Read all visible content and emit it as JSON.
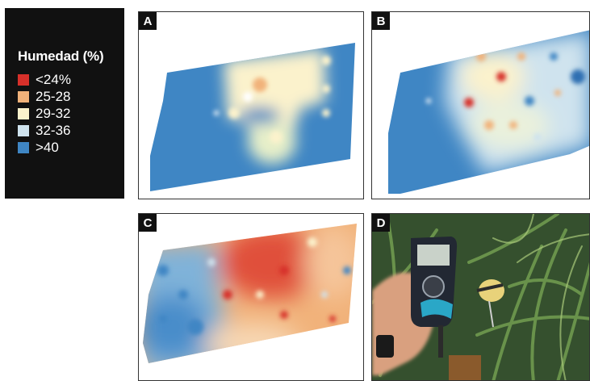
{
  "legend": {
    "title": "Humedad (%)",
    "items": [
      {
        "label": "<24%",
        "color": "#d7302a"
      },
      {
        "label": "25-28",
        "color": "#f1b27a"
      },
      {
        "label": "29-32",
        "color": "#fbf2cc"
      },
      {
        "label": "32-36",
        "color": "#cfe3ee"
      },
      {
        "label": ">40",
        "color": "#3f86c4"
      }
    ]
  },
  "panels": [
    {
      "letter": "A"
    },
    {
      "letter": "B"
    },
    {
      "letter": "C"
    },
    {
      "letter": "D"
    }
  ],
  "colors": {
    "wet": "#3f86c4",
    "moist": "#cfe3ee",
    "mid": "#fbf2cc",
    "dry": "#f1b27a",
    "very_dry": "#d7302a"
  }
}
